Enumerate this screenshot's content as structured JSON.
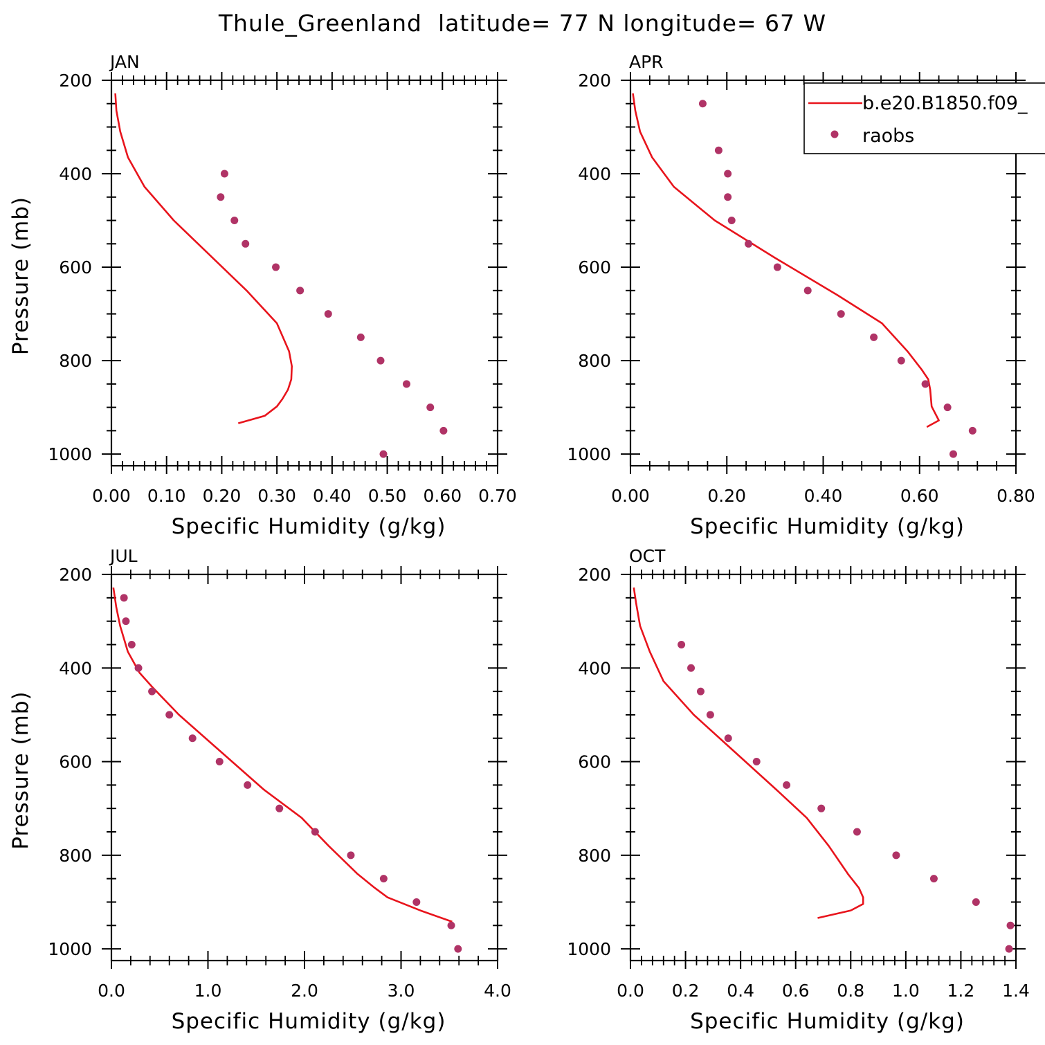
{
  "title": "Thule_Greenland  latitude= 77 N longitude= 67 W",
  "legend": {
    "items": [
      {
        "label": "b.e20.B1850.f09_",
        "type": "line",
        "color": "#e8141c"
      },
      {
        "label": "raobs",
        "type": "marker",
        "color": "#b03366"
      }
    ]
  },
  "colors": {
    "model_line": "#e8141c",
    "raobs_marker": "#b03366"
  },
  "chart_data": [
    {
      "type": "line",
      "panel": "JAN",
      "xlabel": "Specific Humidity (g/kg)",
      "ylabel": "Pressure (mb)",
      "xlim": [
        0,
        0.7
      ],
      "ylim": [
        200,
        1025
      ],
      "y_reversed": true,
      "xticks": [
        "0.00",
        "0.10",
        "0.20",
        "0.30",
        "0.40",
        "0.50",
        "0.60",
        "0.70"
      ],
      "yticks": [
        "200",
        "400",
        "600",
        "800",
        "1000"
      ],
      "model": {
        "name": "b.e20.B1850.f09_",
        "x": [
          0.007,
          0.009,
          0.016,
          0.03,
          0.06,
          0.113,
          0.245,
          0.3,
          0.322,
          0.327,
          0.326,
          0.32,
          0.31,
          0.3,
          0.278,
          0.23
        ],
        "y": [
          228,
          265,
          310,
          365,
          428,
          500,
          650,
          720,
          780,
          812,
          840,
          862,
          882,
          898,
          918,
          934
        ]
      },
      "raobs": {
        "name": "raobs",
        "x": [
          0.205,
          0.198,
          0.223,
          0.243,
          0.298,
          0.342,
          0.393,
          0.452,
          0.488,
          0.535,
          0.578,
          0.602,
          0.493
        ],
        "y": [
          400,
          450,
          500,
          550,
          600,
          650,
          700,
          750,
          800,
          850,
          900,
          950,
          1000
        ]
      }
    },
    {
      "type": "line",
      "panel": "APR",
      "xlabel": "Specific Humidity (g/kg)",
      "ylabel": "",
      "xlim": [
        0,
        0.8
      ],
      "ylim": [
        200,
        1025
      ],
      "y_reversed": true,
      "xticks": [
        "0.00",
        "0.20",
        "0.40",
        "0.60",
        "0.80"
      ],
      "yticks": [
        "200",
        "400",
        "600",
        "800",
        "1000"
      ],
      "model": {
        "name": "b.e20.B1850.f09_",
        "x": [
          0.005,
          0.01,
          0.02,
          0.045,
          0.09,
          0.175,
          0.3,
          0.43,
          0.522,
          0.575,
          0.605,
          0.618,
          0.622,
          0.625,
          0.64,
          0.615
        ],
        "y": [
          228,
          265,
          310,
          365,
          428,
          500,
          580,
          660,
          720,
          780,
          820,
          840,
          862,
          898,
          928,
          942
        ]
      },
      "raobs": {
        "name": "raobs",
        "x": [
          0.15,
          0.183,
          0.202,
          0.202,
          0.21,
          0.245,
          0.305,
          0.368,
          0.437,
          0.505,
          0.562,
          0.612,
          0.658,
          0.71,
          0.67
        ],
        "y": [
          250,
          350,
          400,
          450,
          500,
          550,
          600,
          650,
          700,
          750,
          800,
          850,
          900,
          950,
          1000
        ]
      }
    },
    {
      "type": "line",
      "panel": "JUL",
      "xlabel": "Specific Humidity (g/kg)",
      "ylabel": "Pressure (mb)",
      "xlim": [
        0,
        4.0
      ],
      "ylim": [
        200,
        1025
      ],
      "y_reversed": true,
      "xticks": [
        "0.0",
        "1.0",
        "2.0",
        "3.0",
        "4.0"
      ],
      "yticks": [
        "200",
        "400",
        "600",
        "800",
        "1000"
      ],
      "model": {
        "name": "b.e20.B1850.f09_",
        "x": [
          0.02,
          0.05,
          0.09,
          0.17,
          0.29,
          0.42,
          0.7,
          1.14,
          1.58,
          1.97,
          2.25,
          2.55,
          2.73,
          2.86,
          3.2,
          3.53
        ],
        "y": [
          228,
          270,
          310,
          365,
          410,
          440,
          500,
          580,
          660,
          720,
          780,
          840,
          870,
          890,
          918,
          942
        ]
      },
      "raobs": {
        "name": "raobs",
        "x": [
          0.13,
          0.15,
          0.21,
          0.28,
          0.42,
          0.6,
          0.84,
          1.12,
          1.41,
          1.74,
          2.11,
          2.48,
          2.82,
          3.16,
          3.52,
          3.59
        ],
        "y": [
          250,
          300,
          350,
          400,
          450,
          500,
          550,
          600,
          650,
          700,
          750,
          800,
          850,
          900,
          950,
          1000
        ]
      }
    },
    {
      "type": "line",
      "panel": "OCT",
      "xlabel": "Specific Humidity (g/kg)",
      "ylabel": "",
      "xlim": [
        0,
        1.4
      ],
      "ylim": [
        200,
        1025
      ],
      "y_reversed": true,
      "xticks": [
        "0.0",
        "0.2",
        "0.4",
        "0.6",
        "0.8",
        "1.0",
        "1.2",
        "1.4"
      ],
      "yticks": [
        "200",
        "400",
        "600",
        "800",
        "1000"
      ],
      "model": {
        "name": "b.e20.B1850.f09_",
        "x": [
          0.012,
          0.02,
          0.035,
          0.07,
          0.12,
          0.23,
          0.38,
          0.53,
          0.64,
          0.72,
          0.79,
          0.83,
          0.845,
          0.845,
          0.8,
          0.68
        ],
        "y": [
          228,
          260,
          310,
          365,
          428,
          500,
          580,
          660,
          720,
          780,
          840,
          870,
          890,
          904,
          918,
          934
        ]
      },
      "raobs": {
        "name": "raobs",
        "x": [
          0.185,
          0.22,
          0.255,
          0.29,
          0.355,
          0.458,
          0.567,
          0.693,
          0.823,
          0.965,
          1.102,
          1.255,
          1.38,
          1.375
        ],
        "y": [
          350,
          400,
          450,
          500,
          550,
          600,
          650,
          700,
          750,
          800,
          850,
          900,
          950,
          1000
        ]
      }
    }
  ]
}
